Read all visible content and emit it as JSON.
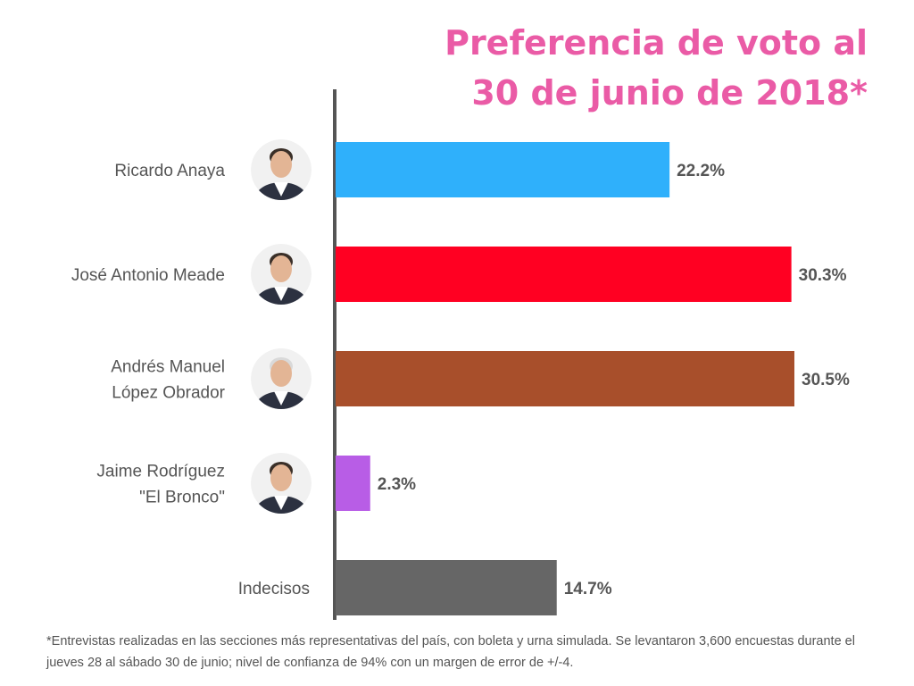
{
  "chart_data": {
    "type": "bar",
    "orientation": "horizontal",
    "title": [
      "Preferencia de voto al",
      "30 de junio de 2018*"
    ],
    "categories": [
      [
        "Ricardo Anaya"
      ],
      [
        "José Antonio Meade"
      ],
      [
        "Andrés Manuel",
        "López Obrador"
      ],
      [
        "Jaime Rodríguez",
        "\"El Bronco\""
      ],
      [
        "Indecisos"
      ]
    ],
    "values": [
      22.2,
      30.3,
      30.5,
      2.3,
      14.7
    ],
    "value_labels": [
      "22.2%",
      "30.3%",
      "30.5%",
      "2.3%",
      "14.7%"
    ],
    "colors": [
      "#2fb0fb",
      "#ff0022",
      "#a84f2b",
      "#b85de6",
      "#666666"
    ],
    "has_photo": [
      true,
      true,
      true,
      true,
      false
    ],
    "xlim": [
      0,
      35
    ],
    "grid": false,
    "legend": "none"
  },
  "footnote": "*Entrevistas realizadas en las secciones más representativas del país, con boleta y urna simulada. Se levantaron 3,600 encuestas durante el jueves 28 al sábado 30 de junio; nivel de confianza de 94% con un margen de error de +/-4."
}
